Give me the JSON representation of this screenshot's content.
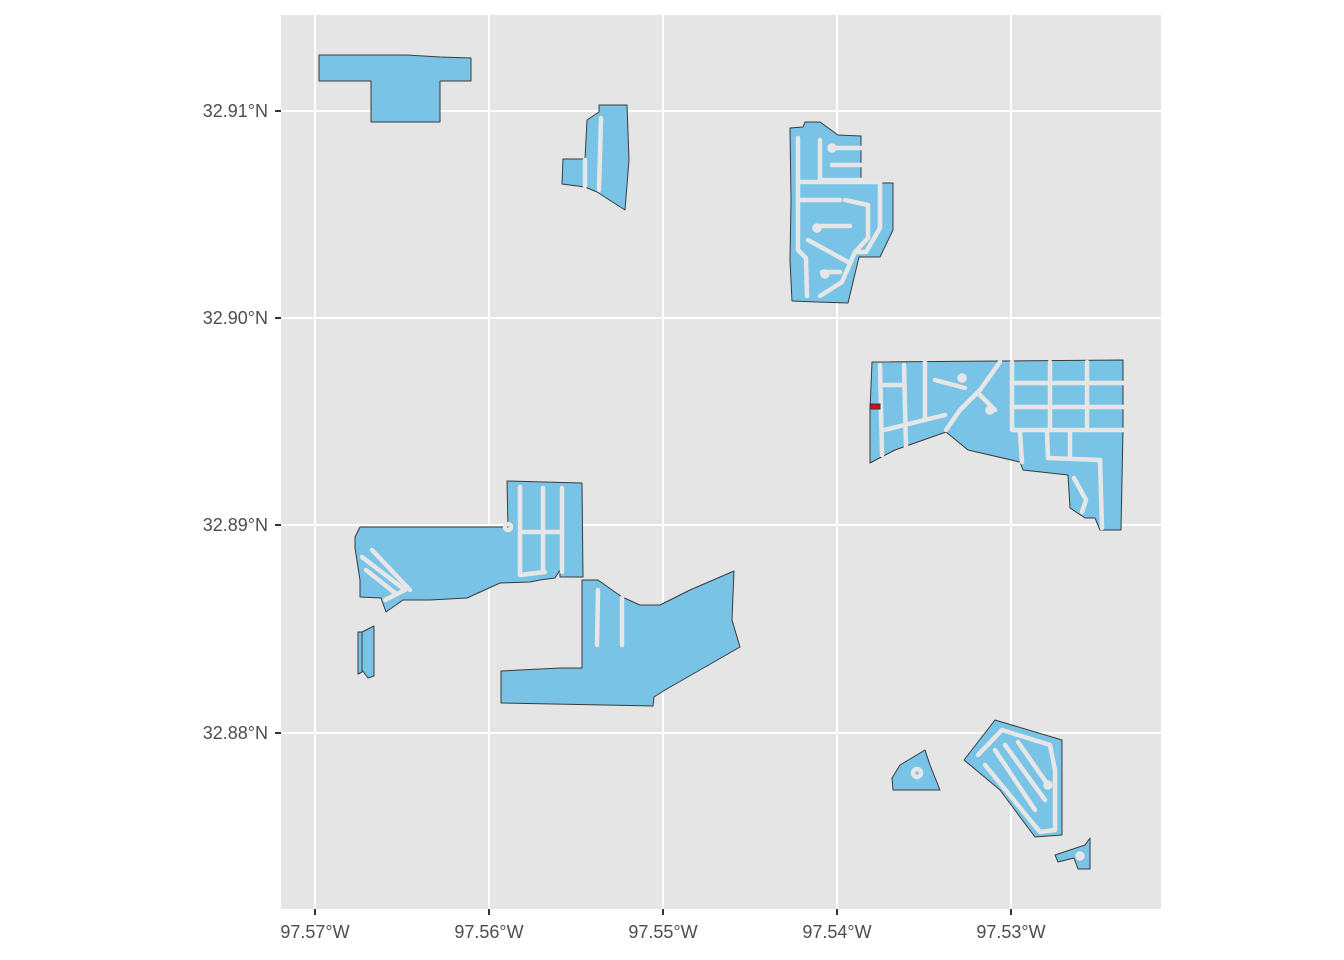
{
  "map": {
    "type": "choropleth-parcels",
    "fill_color": "#79c3e6",
    "highlight_color": "#e8001c",
    "panel_color": "#e5e5e5",
    "grid_color": "#ffffff",
    "x_ticks": [
      "97.57°W",
      "97.56°W",
      "97.55°W",
      "97.54°W",
      "97.53°W"
    ],
    "y_ticks": [
      "32.91°N",
      "32.90°N",
      "32.89°N",
      "32.88°N"
    ],
    "x_tick_values": [
      -97.57,
      -97.56,
      -97.55,
      -97.54,
      -97.53
    ],
    "y_tick_values": [
      32.91,
      32.9,
      32.89,
      32.88
    ],
    "xlim": [
      -97.572,
      -97.5215
    ],
    "ylim": [
      32.8715,
      32.9145
    ],
    "legend": "none"
  }
}
